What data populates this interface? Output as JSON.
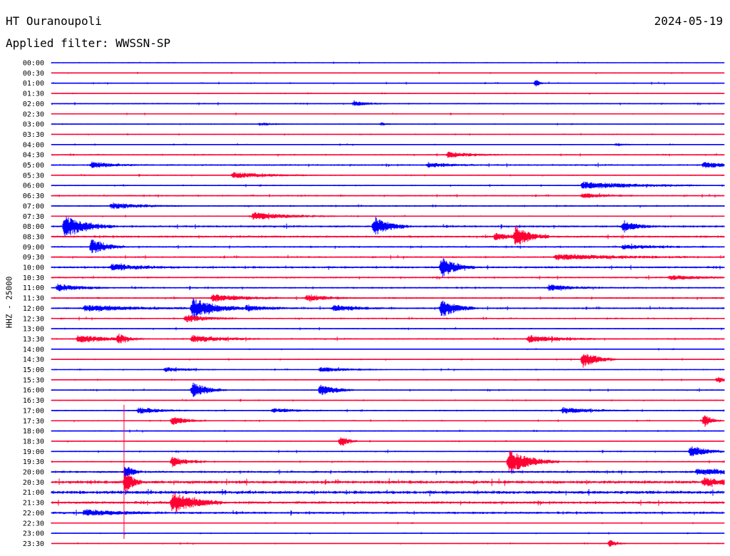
{
  "header": {
    "station": "HT Ouranoupoli",
    "date": "2024-05-19",
    "filter": "Applied filter: WWSSN-SP"
  },
  "chart_data": {
    "type": "line",
    "title": "HT Ouranoupoli",
    "ylabel": "HHZ - 25000",
    "row_labels": [
      "00:00",
      "00:30",
      "01:00",
      "01:30",
      "02:00",
      "02:30",
      "03:00",
      "03:30",
      "04:00",
      "04:30",
      "05:00",
      "05:30",
      "06:00",
      "06:30",
      "07:00",
      "07:30",
      "08:00",
      "08:30",
      "09:00",
      "09:30",
      "10:00",
      "10:30",
      "11:00",
      "11:30",
      "12:00",
      "12:30",
      "13:00",
      "13:30",
      "14:00",
      "14:30",
      "15:00",
      "15:30",
      "16:00",
      "16:30",
      "17:00",
      "17:30",
      "18:00",
      "18:30",
      "19:00",
      "19:30",
      "20:00",
      "20:30",
      "21:00",
      "21:30",
      "22:00",
      "22:30",
      "23:00",
      "23:30"
    ],
    "colors": {
      "even": "#0000ff",
      "odd": "#ff0033"
    },
    "row_noise": [
      0.6,
      0.6,
      0.7,
      0.6,
      0.8,
      0.6,
      0.6,
      0.6,
      0.6,
      0.8,
      1.0,
      0.7,
      0.8,
      0.9,
      0.9,
      0.7,
      1.2,
      1.2,
      1.0,
      1.0,
      1.2,
      1.0,
      1.0,
      1.0,
      1.1,
      0.9,
      0.8,
      0.9,
      0.6,
      0.7,
      0.7,
      0.6,
      0.8,
      0.7,
      0.8,
      0.7,
      0.7,
      0.6,
      0.8,
      0.8,
      1.3,
      1.8,
      1.8,
      1.5,
      1.3,
      0.6,
      0.6,
      0.6
    ],
    "events": [
      {
        "row": 2,
        "x": 0.72,
        "amp": 5,
        "dur": 0.005
      },
      {
        "row": 4,
        "x": 0.45,
        "amp": 3,
        "dur": 0.02
      },
      {
        "row": 6,
        "x": 0.31,
        "amp": 2,
        "dur": 0.02
      },
      {
        "row": 6,
        "x": 0.49,
        "amp": 2,
        "dur": 0.01
      },
      {
        "row": 8,
        "x": 0.84,
        "amp": 2,
        "dur": 0.01
      },
      {
        "row": 9,
        "x": 0.59,
        "amp": 4,
        "dur": 0.03
      },
      {
        "row": 10,
        "x": 0.06,
        "amp": 4,
        "dur": 0.03
      },
      {
        "row": 10,
        "x": 0.56,
        "amp": 3,
        "dur": 0.03
      },
      {
        "row": 10,
        "x": 0.97,
        "amp": 4,
        "dur": 0.03
      },
      {
        "row": 11,
        "x": 0.27,
        "amp": 4,
        "dur": 0.05
      },
      {
        "row": 12,
        "x": 0.79,
        "amp": 5,
        "dur": 0.07
      },
      {
        "row": 13,
        "x": 0.79,
        "amp": 3,
        "dur": 0.03
      },
      {
        "row": 14,
        "x": 0.09,
        "amp": 4,
        "dur": 0.04
      },
      {
        "row": 15,
        "x": 0.3,
        "amp": 5,
        "dur": 0.05
      },
      {
        "row": 16,
        "x": 0.02,
        "amp": 14,
        "dur": 0.03
      },
      {
        "row": 16,
        "x": 0.48,
        "amp": 14,
        "dur": 0.02
      },
      {
        "row": 16,
        "x": 0.85,
        "amp": 7,
        "dur": 0.02
      },
      {
        "row": 17,
        "x": 0.66,
        "amp": 5,
        "dur": 0.02
      },
      {
        "row": 17,
        "x": 0.69,
        "amp": 14,
        "dur": 0.02
      },
      {
        "row": 18,
        "x": 0.06,
        "amp": 11,
        "dur": 0.02
      },
      {
        "row": 18,
        "x": 0.85,
        "amp": 3,
        "dur": 0.04
      },
      {
        "row": 19,
        "x": 0.75,
        "amp": 4,
        "dur": 0.08
      },
      {
        "row": 20,
        "x": 0.09,
        "amp": 4,
        "dur": 0.04
      },
      {
        "row": 20,
        "x": 0.58,
        "amp": 14,
        "dur": 0.02
      },
      {
        "row": 21,
        "x": 0.92,
        "amp": 3,
        "dur": 0.04
      },
      {
        "row": 22,
        "x": 0.01,
        "amp": 5,
        "dur": 0.03
      },
      {
        "row": 22,
        "x": 0.74,
        "amp": 4,
        "dur": 0.03
      },
      {
        "row": 23,
        "x": 0.24,
        "amp": 5,
        "dur": 0.04
      },
      {
        "row": 23,
        "x": 0.38,
        "amp": 4,
        "dur": 0.03
      },
      {
        "row": 24,
        "x": 0.05,
        "amp": 4,
        "dur": 0.06
      },
      {
        "row": 24,
        "x": 0.21,
        "amp": 14,
        "dur": 0.03
      },
      {
        "row": 24,
        "x": 0.29,
        "amp": 4,
        "dur": 0.03
      },
      {
        "row": 24,
        "x": 0.42,
        "amp": 4,
        "dur": 0.03
      },
      {
        "row": 24,
        "x": 0.58,
        "amp": 13,
        "dur": 0.02
      },
      {
        "row": 25,
        "x": 0.2,
        "amp": 5,
        "dur": 0.03
      },
      {
        "row": 27,
        "x": 0.04,
        "amp": 5,
        "dur": 0.04
      },
      {
        "row": 27,
        "x": 0.1,
        "amp": 6,
        "dur": 0.01
      },
      {
        "row": 27,
        "x": 0.21,
        "amp": 5,
        "dur": 0.04
      },
      {
        "row": 27,
        "x": 0.71,
        "amp": 5,
        "dur": 0.04
      },
      {
        "row": 29,
        "x": 0.79,
        "amp": 11,
        "dur": 0.02
      },
      {
        "row": 30,
        "x": 0.17,
        "amp": 3,
        "dur": 0.03
      },
      {
        "row": 30,
        "x": 0.4,
        "amp": 3,
        "dur": 0.04
      },
      {
        "row": 31,
        "x": 0.99,
        "amp": 4,
        "dur": 0.02
      },
      {
        "row": 32,
        "x": 0.21,
        "amp": 11,
        "dur": 0.02
      },
      {
        "row": 32,
        "x": 0.4,
        "amp": 8,
        "dur": 0.02
      },
      {
        "row": 34,
        "x": 0.13,
        "amp": 4,
        "dur": 0.03
      },
      {
        "row": 34,
        "x": 0.33,
        "amp": 3,
        "dur": 0.03
      },
      {
        "row": 34,
        "x": 0.76,
        "amp": 4,
        "dur": 0.04
      },
      {
        "row": 35,
        "x": 0.18,
        "amp": 6,
        "dur": 0.02
      },
      {
        "row": 35,
        "x": 0.97,
        "amp": 9,
        "dur": 0.01
      },
      {
        "row": 37,
        "x": 0.43,
        "amp": 9,
        "dur": 0.01
      },
      {
        "row": 38,
        "x": 0.95,
        "amp": 9,
        "dur": 0.02
      },
      {
        "row": 39,
        "x": 0.18,
        "amp": 7,
        "dur": 0.02
      },
      {
        "row": 39,
        "x": 0.68,
        "amp": 16,
        "dur": 0.03
      },
      {
        "row": 40,
        "x": 0.11,
        "amp": 9,
        "dur": 0.01
      },
      {
        "row": 40,
        "x": 0.96,
        "amp": 4,
        "dur": 0.05
      },
      {
        "row": 41,
        "x": 0.11,
        "amp": 16,
        "dur": 0.01
      },
      {
        "row": 41,
        "x": 0.97,
        "amp": 5,
        "dur": 0.03
      },
      {
        "row": 43,
        "x": 0.18,
        "amp": 14,
        "dur": 0.03
      },
      {
        "row": 44,
        "x": 0.05,
        "amp": 4,
        "dur": 0.05
      },
      {
        "row": 47,
        "x": 0.83,
        "amp": 5,
        "dur": 0.01
      }
    ],
    "spike": {
      "x": 0.108,
      "row_from": 34,
      "row_to": 46
    }
  }
}
